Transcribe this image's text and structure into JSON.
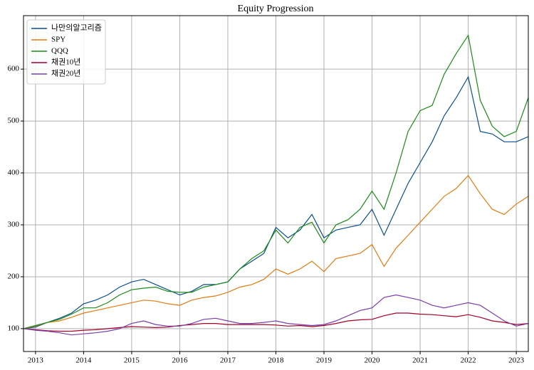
{
  "chart_data": {
    "type": "line",
    "title": "Equity Progression",
    "x": [
      2012.75,
      2013.0,
      2013.25,
      2013.5,
      2013.75,
      2014.0,
      2014.25,
      2014.5,
      2014.75,
      2015.0,
      2015.25,
      2015.5,
      2015.75,
      2016.0,
      2016.25,
      2016.5,
      2016.75,
      2017.0,
      2017.25,
      2017.5,
      2017.75,
      2018.0,
      2018.25,
      2018.5,
      2018.75,
      2019.0,
      2019.25,
      2019.5,
      2019.75,
      2020.0,
      2020.25,
      2020.5,
      2020.75,
      2021.0,
      2021.25,
      2021.5,
      2021.75,
      2022.0,
      2022.25,
      2022.5,
      2022.75,
      2023.0,
      2023.25
    ],
    "series": [
      {
        "name": "나만의알고리즘",
        "color": "#0b4f8a",
        "values": [
          100,
          103,
          112,
          120,
          130,
          148,
          155,
          165,
          180,
          190,
          195,
          185,
          175,
          165,
          172,
          185,
          185,
          190,
          215,
          230,
          245,
          295,
          275,
          290,
          320,
          275,
          290,
          295,
          300,
          330,
          280,
          330,
          380,
          420,
          460,
          510,
          545,
          585,
          480,
          475,
          460,
          460,
          470
        ]
      },
      {
        "name": "SPY",
        "color": "#e07b10",
        "values": [
          100,
          105,
          112,
          115,
          122,
          130,
          135,
          140,
          145,
          150,
          155,
          153,
          148,
          145,
          155,
          160,
          163,
          170,
          180,
          185,
          195,
          215,
          205,
          215,
          230,
          210,
          235,
          240,
          245,
          262,
          220,
          255,
          280,
          305,
          330,
          355,
          370,
          395,
          360,
          330,
          320,
          340,
          355
        ]
      },
      {
        "name": "QQQ",
        "color": "#1a8a1a",
        "values": [
          100,
          106,
          112,
          118,
          128,
          140,
          140,
          150,
          165,
          175,
          178,
          180,
          172,
          170,
          170,
          180,
          185,
          190,
          215,
          235,
          250,
          290,
          265,
          295,
          305,
          265,
          300,
          310,
          330,
          365,
          330,
          400,
          480,
          520,
          530,
          590,
          630,
          665,
          540,
          490,
          470,
          480,
          545
        ]
      },
      {
        "name": "채권10년",
        "color": "#a0002a",
        "values": [
          100,
          98,
          96,
          95,
          95,
          97,
          98,
          100,
          102,
          104,
          103,
          102,
          103,
          106,
          108,
          110,
          110,
          108,
          108,
          108,
          108,
          107,
          105,
          106,
          104,
          106,
          110,
          115,
          117,
          118,
          125,
          130,
          130,
          128,
          127,
          125,
          123,
          127,
          122,
          115,
          112,
          108,
          110
        ]
      },
      {
        "name": "채권20년",
        "color": "#7a3fa8",
        "values": [
          100,
          97,
          95,
          92,
          88,
          90,
          92,
          95,
          100,
          110,
          115,
          108,
          105,
          105,
          110,
          118,
          120,
          115,
          110,
          110,
          112,
          115,
          110,
          108,
          106,
          108,
          115,
          125,
          135,
          140,
          160,
          165,
          160,
          155,
          145,
          140,
          145,
          150,
          145,
          130,
          115,
          105,
          110
        ]
      }
    ],
    "xlim": [
      2012.75,
      2023.25
    ],
    "xticks": [
      2013,
      2014,
      2015,
      2016,
      2017,
      2018,
      2019,
      2020,
      2021,
      2022,
      2023
    ],
    "ylim": [
      56,
      703
    ],
    "yticks": [
      100,
      200,
      300,
      400,
      500,
      600
    ],
    "grid": true,
    "legend": "upper left"
  }
}
